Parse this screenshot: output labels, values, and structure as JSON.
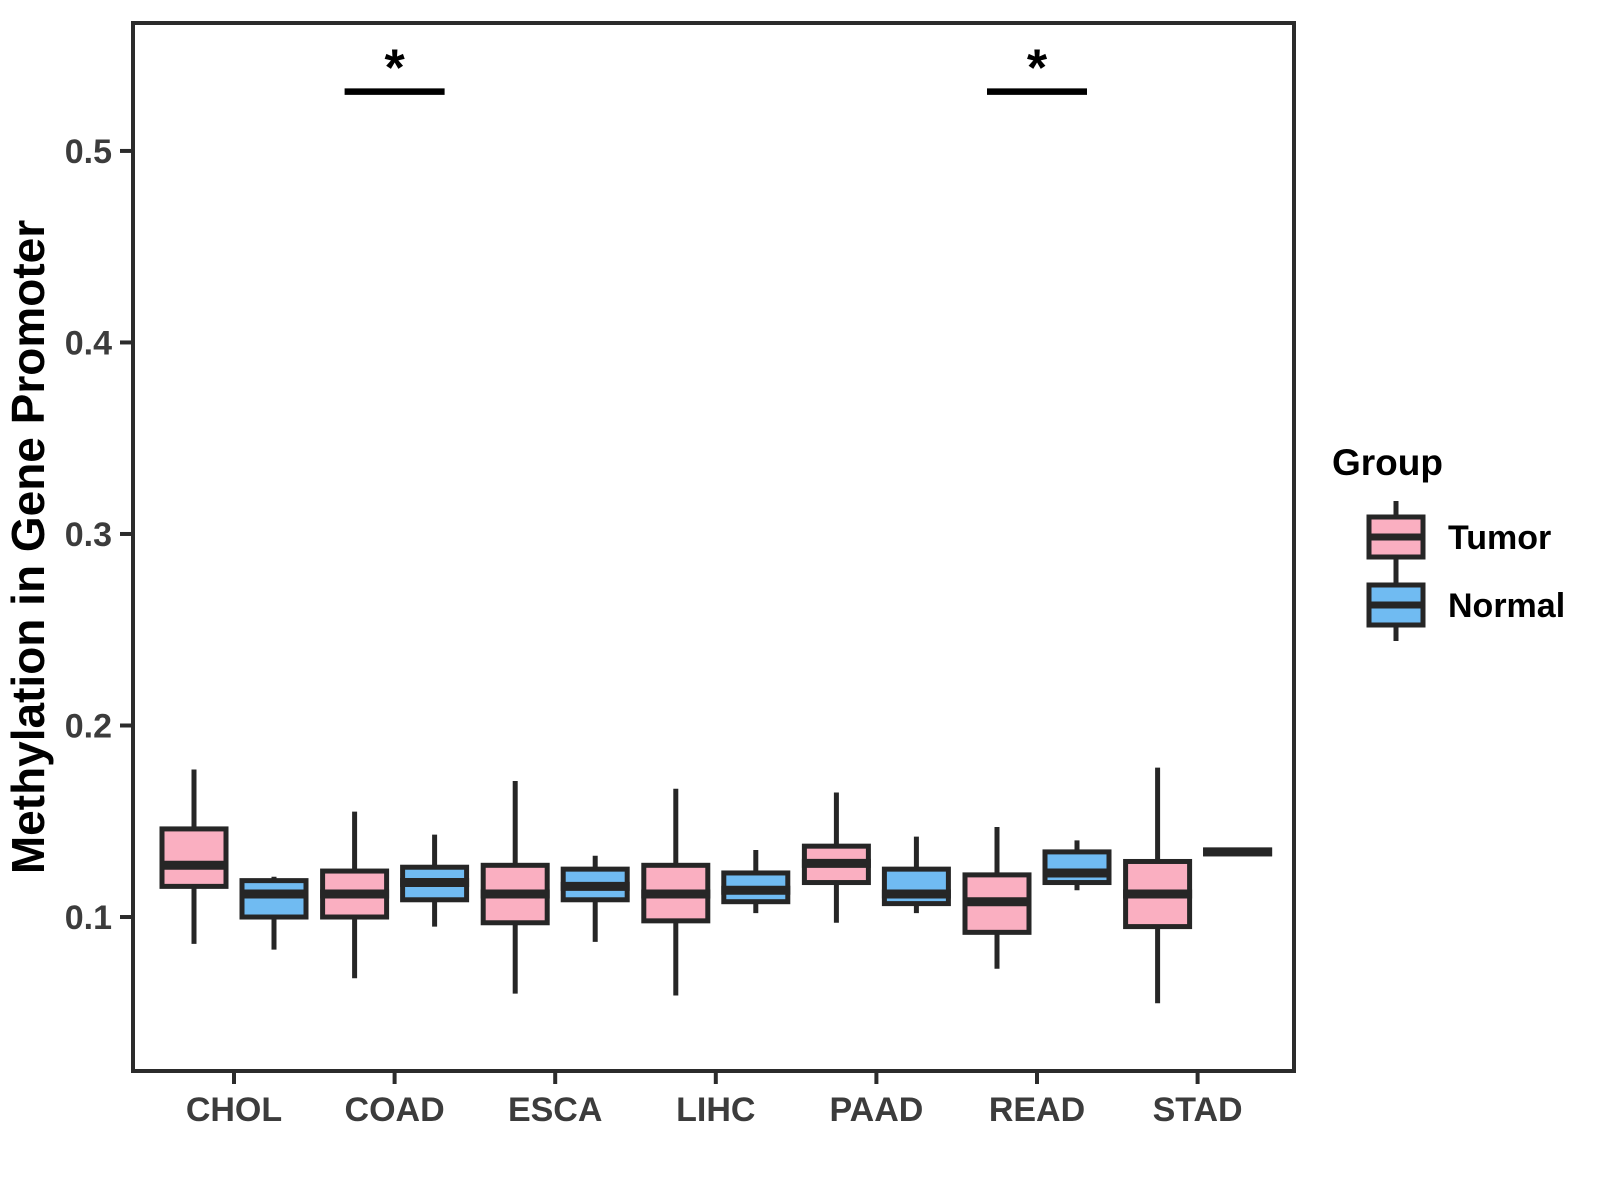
{
  "chart_data": {
    "type": "boxplot",
    "title": "",
    "xlabel": "",
    "ylabel": "Methylation in Gene Promoter",
    "categories": [
      "CHOL",
      "COAD",
      "ESCA",
      "LIHC",
      "PAAD",
      "READ",
      "STAD"
    ],
    "y_ticks": [
      "0.1",
      "0.2",
      "0.3",
      "0.4",
      "0.5"
    ],
    "y_tick_values": [
      0.1,
      0.2,
      0.3,
      0.4,
      0.5
    ],
    "ylim": [
      0.0196,
      0.5668
    ],
    "grid": "off",
    "legend": {
      "title": "Group",
      "position": "right",
      "entries": [
        {
          "label": "Tumor",
          "color": "#FAAFC1"
        },
        {
          "label": "Normal",
          "color": "#70BBF2"
        }
      ]
    },
    "series": [
      {
        "name": "Tumor",
        "color": "#FAAFC1",
        "boxes": [
          {
            "category": "CHOL",
            "whisker_low": 0.086,
            "q1": 0.116,
            "median": 0.127,
            "q3": 0.146,
            "whisker_high": 0.177
          },
          {
            "category": "COAD",
            "whisker_low": 0.068,
            "q1": 0.1,
            "median": 0.112,
            "q3": 0.124,
            "whisker_high": 0.155
          },
          {
            "category": "ESCA",
            "whisker_low": 0.06,
            "q1": 0.097,
            "median": 0.112,
            "q3": 0.127,
            "whisker_high": 0.171
          },
          {
            "category": "LIHC",
            "whisker_low": 0.059,
            "q1": 0.098,
            "median": 0.112,
            "q3": 0.127,
            "whisker_high": 0.167
          },
          {
            "category": "PAAD",
            "whisker_low": 0.097,
            "q1": 0.118,
            "median": 0.128,
            "q3": 0.137,
            "whisker_high": 0.165
          },
          {
            "category": "READ",
            "whisker_low": 0.073,
            "q1": 0.092,
            "median": 0.108,
            "q3": 0.122,
            "whisker_high": 0.147
          },
          {
            "category": "STAD",
            "whisker_low": 0.055,
            "q1": 0.095,
            "median": 0.112,
            "q3": 0.129,
            "whisker_high": 0.178
          }
        ]
      },
      {
        "name": "Normal",
        "color": "#70BBF2",
        "boxes": [
          {
            "category": "CHOL",
            "whisker_low": 0.083,
            "q1": 0.1,
            "median": 0.112,
            "q3": 0.119,
            "whisker_high": 0.121
          },
          {
            "category": "COAD",
            "whisker_low": 0.095,
            "q1": 0.109,
            "median": 0.118,
            "q3": 0.126,
            "whisker_high": 0.143
          },
          {
            "category": "ESCA",
            "whisker_low": 0.087,
            "q1": 0.109,
            "median": 0.116,
            "q3": 0.125,
            "whisker_high": 0.132
          },
          {
            "category": "LIHC",
            "whisker_low": 0.102,
            "q1": 0.108,
            "median": 0.114,
            "q3": 0.123,
            "whisker_high": 0.135
          },
          {
            "category": "PAAD",
            "whisker_low": 0.102,
            "q1": 0.107,
            "median": 0.112,
            "q3": 0.125,
            "whisker_high": 0.142
          },
          {
            "category": "READ",
            "whisker_low": 0.114,
            "q1": 0.118,
            "median": 0.123,
            "q3": 0.134,
            "whisker_high": 0.14
          },
          {
            "category": "STAD",
            "whisker_low": 0.132,
            "q1": 0.133,
            "median": 0.134,
            "q3": 0.135,
            "whisker_high": 0.136
          }
        ]
      }
    ],
    "annotations": [
      {
        "label": "*",
        "category": "COAD",
        "y": 0.531
      },
      {
        "label": "*",
        "category": "READ",
        "y": 0.531
      }
    ],
    "colors": {
      "box_border": "#262626",
      "median": "#262626",
      "whisker": "#262626",
      "panel_border": "#2B2B2B",
      "tick": "#2B2B2B",
      "tick_label": "#3C3C3C",
      "axis_title": "#000000",
      "legend_text": "#000000",
      "annotation": "#000000",
      "background": "#FFFFFF"
    }
  }
}
